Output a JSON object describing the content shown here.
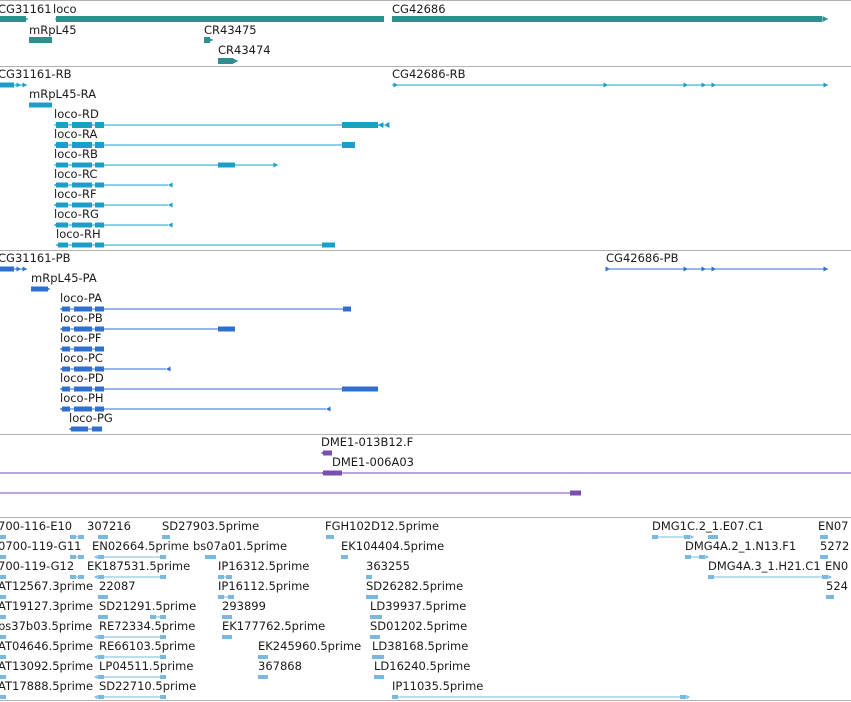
{
  "colors": {
    "gene": "#2f8f8f",
    "transcript": "#1aa0c8",
    "protein": "#2f6fd0",
    "clone": "#7a4fb0",
    "est": "#7ab8e0",
    "separator": "#b0b0b0"
  },
  "tracks": {
    "genes": {
      "labels": [
        "CG31161",
        "loco",
        "CG42686",
        "mRpL45",
        "CR43475",
        "CR43474"
      ]
    },
    "transcripts": {
      "labels": [
        "CG31161-RB",
        "CG42686-RB",
        "mRpL45-RA",
        "loco-RD",
        "loco-RA",
        "loco-RB",
        "loco-RC",
        "loco-RF",
        "loco-RG",
        "loco-RH"
      ]
    },
    "proteins": {
      "labels": [
        "CG31161-PB",
        "CG42686-PB",
        "mRpL45-PA",
        "loco-PA",
        "loco-PB",
        "loco-PF",
        "loco-PC",
        "loco-PD",
        "loco-PH",
        "loco-PG"
      ]
    },
    "clones": {
      "labels": [
        "DME1-013B12.F",
        "DME1-006A03"
      ]
    },
    "ests": {
      "labels": [
        "700-116-E10",
        "307216",
        "SD27903.5prime",
        "FGH102D12.5prime",
        "DMG1C.2_1.E07.C1",
        "EN07",
        "0700-119-G11",
        "EN02664.5prime",
        "bs07a01.5prime",
        "EK104404.5prime",
        "DMG4A.2_1.N13.F1",
        "5272",
        "700-119-G12",
        "EK187531.5prime",
        "IP16312.5prime",
        "363255",
        "DMG4A.3_1.H21.C1",
        "EN0",
        "AT12567.3prime",
        "22087",
        "IP16112.5prime",
        "SD26282.5prime",
        "524",
        "AT19127.3prime",
        "SD21291.5prime",
        "293899",
        "LD39937.5prime",
        "bs37b03.5prime",
        "RE72334.5prime",
        "EK177762.5prime",
        "SD01202.5prime",
        "AT04646.5prime",
        "RE66103.5prime",
        "EK245960.5prime",
        "LD38168.5prime",
        "AT13092.5prime",
        "LP04511.5prime",
        "367868",
        "LD16240.5prime",
        "AT17888.5prime",
        "SD22710.5prime",
        "IP11035.5prime"
      ]
    }
  }
}
